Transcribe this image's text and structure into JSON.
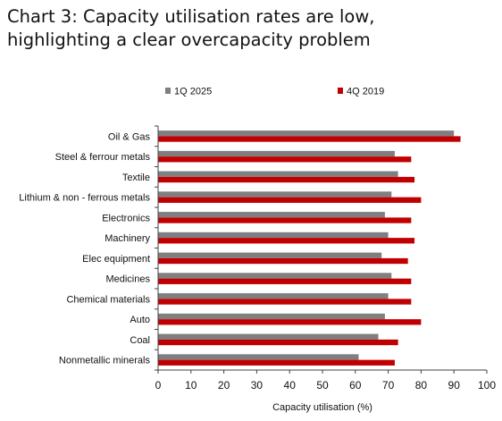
{
  "title": {
    "line1": "Chart 3: Capacity utilisation rates are low,",
    "line2": "highlighting a clear overcapacity problem"
  },
  "chart_data": {
    "type": "bar",
    "orientation": "horizontal",
    "title": "Chart 3: Capacity utilisation rates are low, highlighting a clear overcapacity problem",
    "categories": [
      "Oil & Gas",
      "Steel & ferrour metals",
      "Textile",
      "Lithium & non - ferrous metals",
      "Electronics",
      "Machinery",
      "Elec equipment",
      "Medicines",
      "Chemical materials",
      "Auto",
      "Coal",
      "Nonmetallic minerals"
    ],
    "series": [
      {
        "name": "1Q 2025",
        "color": "#7f7f7f",
        "values": [
          90,
          72,
          73,
          71,
          69,
          70,
          68,
          71,
          70,
          69,
          67,
          61
        ]
      },
      {
        "name": "4Q 2019",
        "color": "#c00000",
        "values": [
          92,
          77,
          78,
          80,
          77,
          78,
          76,
          77,
          77,
          80,
          73,
          72
        ]
      }
    ],
    "xlabel": "Capacity utilisation (%)",
    "ylabel": "",
    "xlim": [
      0,
      100
    ],
    "xticks": [
      0,
      10,
      20,
      30,
      40,
      50,
      60,
      70,
      80,
      90,
      100
    ],
    "grid": false,
    "legend_position": "top"
  }
}
